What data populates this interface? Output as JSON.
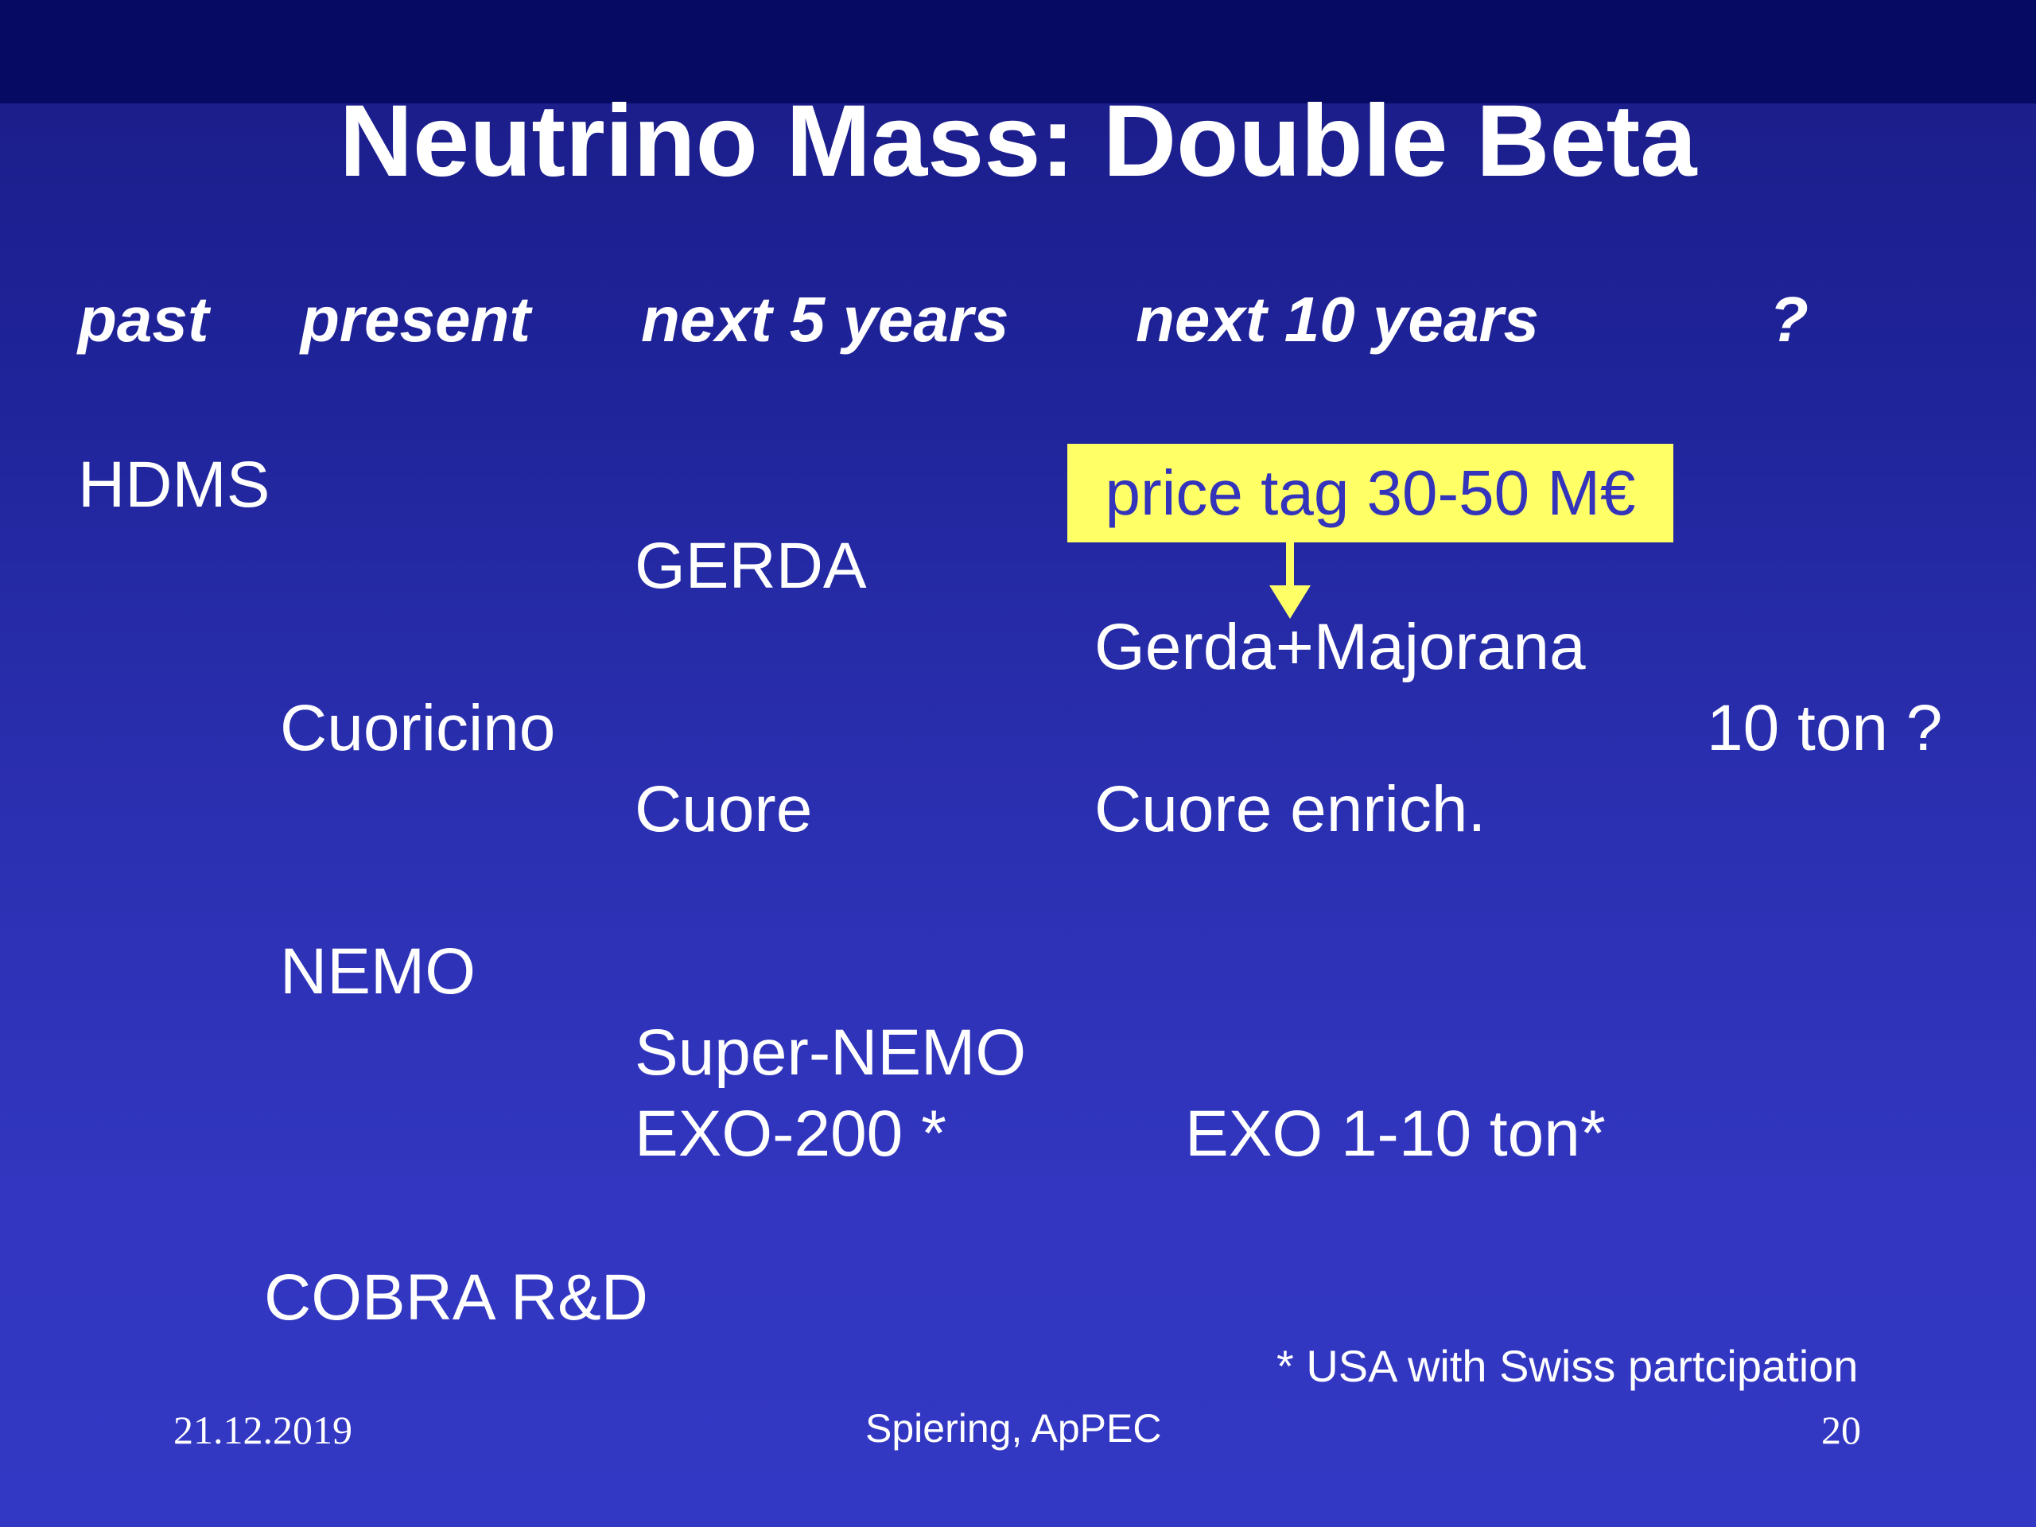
{
  "slide": {
    "title": "Neutrino Mass: Double Beta",
    "columns": {
      "past": "past",
      "present": "present",
      "next5": "next 5 years",
      "next10": "next 10 years",
      "unknown": "?"
    },
    "experiments": {
      "hdms": "HDMS",
      "gerda": "GERDA",
      "gerda_majorana": "Gerda+Majorana",
      "cuoricino": "Cuoricino",
      "ten_ton": "10 ton ?",
      "cuore": "Cuore",
      "cuore_enrich": "Cuore enrich.",
      "nemo": "NEMO",
      "super_nemo": "Super-NEMO",
      "exo200": "EXO-200 *",
      "exo_ton": "EXO 1-10 ton*",
      "cobra": "COBRA R&D"
    },
    "price_tag": "price tag 30-50 M€",
    "footnote": "* USA with Swiss partcipation",
    "footer": {
      "date": "21.12.2019",
      "author": "Spiering, ApPEC",
      "page": "20"
    },
    "colors": {
      "background_top": "#060a62",
      "background": "#2a2fb0",
      "text": "#ffffff",
      "price_box": "#ffff66",
      "price_text": "#3333bb"
    }
  }
}
